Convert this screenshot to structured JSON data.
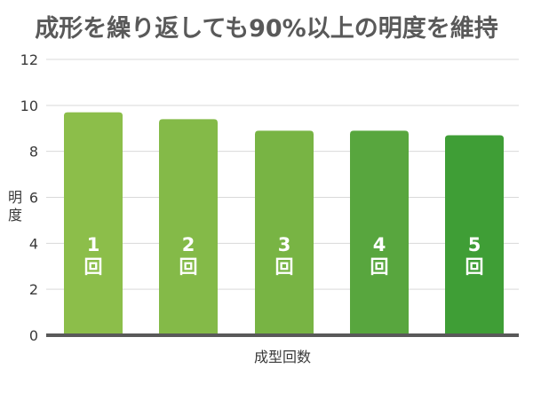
{
  "chart_data": {
    "type": "bar",
    "title": "成形を繰り返しても90%以上の明度を維持",
    "xlabel": "成型回数",
    "ylabel": "明度",
    "categories": [
      "1回",
      "2回",
      "3回",
      "4回",
      "5回"
    ],
    "bar_labels": [
      {
        "num": "1",
        "unit": "回"
      },
      {
        "num": "2",
        "unit": "回"
      },
      {
        "num": "3",
        "unit": "回"
      },
      {
        "num": "4",
        "unit": "回"
      },
      {
        "num": "5",
        "unit": "回"
      }
    ],
    "values": [
      9.7,
      9.4,
      8.9,
      8.9,
      8.7
    ],
    "ylim": [
      0,
      12
    ],
    "yticks": [
      0,
      2,
      4,
      6,
      8,
      10,
      12
    ],
    "grid": true,
    "colors": {
      "bars": [
        "#8cbe4a",
        "#84ba48",
        "#78b444",
        "#58a63e",
        "#3f9e36"
      ],
      "grid": "#d9d9d9",
      "baseline": "#595959",
      "title": "#595959"
    }
  }
}
